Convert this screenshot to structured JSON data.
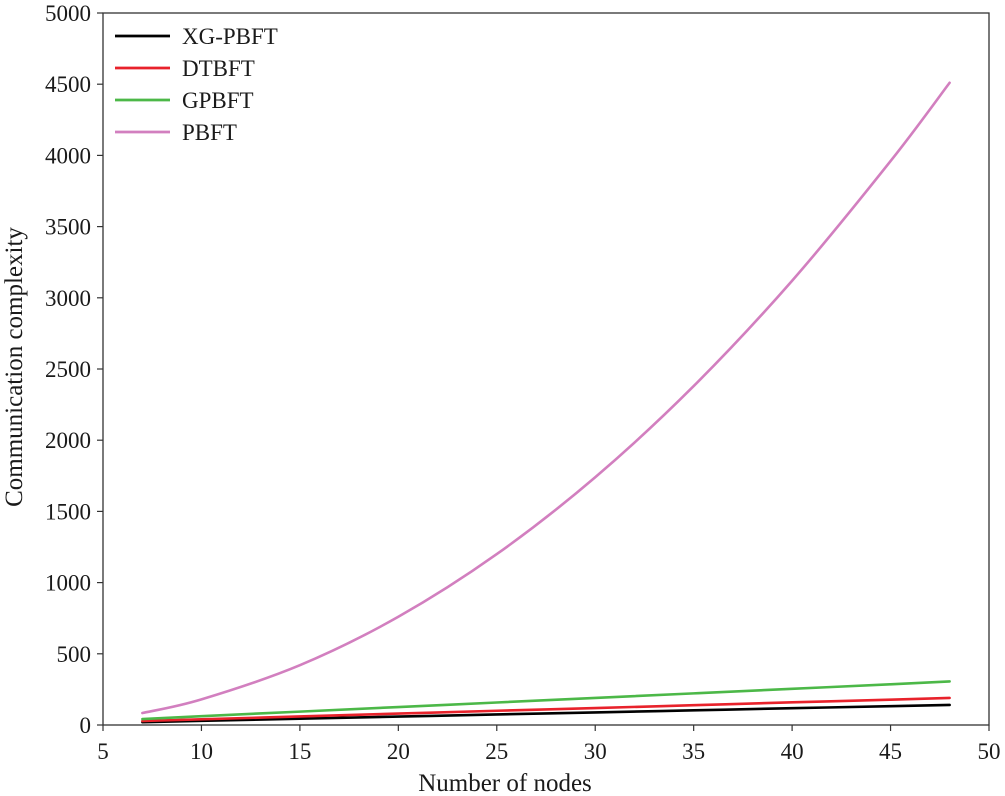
{
  "chart_data": {
    "type": "line",
    "title": "",
    "xlabel": "Number of nodes",
    "ylabel": "Communication complexity",
    "xlim": [
      5,
      50
    ],
    "ylim": [
      0,
      5000
    ],
    "xticks": [
      5,
      10,
      15,
      20,
      25,
      30,
      35,
      40,
      45,
      50
    ],
    "yticks": [
      0,
      500,
      1000,
      1500,
      2000,
      2500,
      3000,
      3500,
      4000,
      4500,
      5000
    ],
    "grid": false,
    "legend_position": "top-left",
    "x": [
      7,
      10,
      15,
      20,
      25,
      30,
      35,
      40,
      45,
      48
    ],
    "series": [
      {
        "name": "XG-PBFT",
        "color": "#000000",
        "values": [
          20,
          29,
          44,
          59,
          74,
          88,
          103,
          118,
          132,
          141
        ]
      },
      {
        "name": "DTBFT",
        "color": "#e8222b",
        "values": [
          28,
          40,
          60,
          80,
          100,
          119,
          139,
          159,
          178,
          190
        ]
      },
      {
        "name": "GPBFT",
        "color": "#4cb848",
        "values": [
          42,
          62,
          94,
          126,
          158,
          190,
          222,
          254,
          286,
          306
        ]
      },
      {
        "name": "PBFT",
        "color": "#d27fbf",
        "values": [
          84,
          180,
          420,
          760,
          1200,
          1740,
          2380,
          3120,
          3960,
          4510
        ]
      }
    ]
  }
}
